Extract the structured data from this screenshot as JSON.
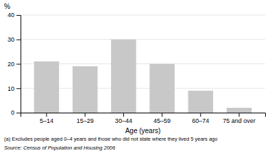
{
  "chart_data": {
    "type": "bar",
    "categories": [
      "5–14",
      "15–29",
      "30–44",
      "45–59",
      "60–74",
      "75 and over"
    ],
    "values": [
      21,
      19,
      30,
      20,
      9,
      2
    ],
    "color": "#c8c8c8",
    "x_label": "Age (years)",
    "y_label": "%",
    "ylim": [
      0,
      40
    ],
    "yticks": [
      0,
      10,
      20,
      30,
      40
    ],
    "grid": true,
    "annotations": [
      "(a) Excludes people aged 0–4 years and those who did not state where they lived 5 years ago",
      "Source: Census of Population and Housing 2006"
    ]
  }
}
